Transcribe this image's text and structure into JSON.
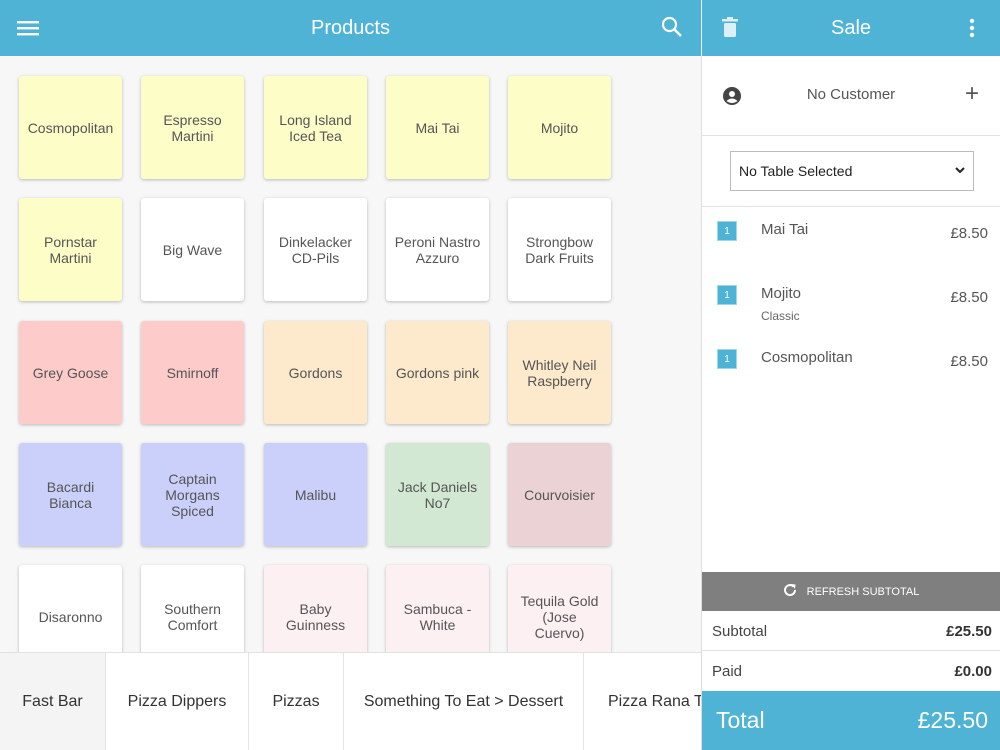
{
  "header": {
    "title": "Products",
    "menu_icon": "hamburger-icon",
    "search_icon": "search-icon"
  },
  "sale_header": {
    "title": "Sale",
    "delete_icon": "trash-icon",
    "more_icon": "more-vert-icon"
  },
  "colors": {
    "accent": "#4fb3d6",
    "yellow": "#fdfdc8",
    "white": "#ffffff",
    "red": "#fecbcb",
    "peach": "#fde9cb",
    "blue": "#cbd0fb",
    "green": "#d2e8d2",
    "mauve": "#ebd2d4",
    "pink": "#fdf0f2"
  },
  "products": [
    {
      "label": "Cosmopolitan",
      "color": "#fdfdc8"
    },
    {
      "label": "Espresso\nMartini",
      "color": "#fdfdc8"
    },
    {
      "label": "Long Island\nIced Tea",
      "color": "#fdfdc8"
    },
    {
      "label": "Mai Tai",
      "color": "#fdfdc8"
    },
    {
      "label": "Mojito",
      "color": "#fdfdc8"
    },
    {
      "label": "Pornstar\nMartini",
      "color": "#fdfdc8"
    },
    {
      "label": "Big Wave",
      "color": "#ffffff"
    },
    {
      "label": "Dinkelacker\nCD-Pils",
      "color": "#ffffff"
    },
    {
      "label": "Peroni Nastro\nAzzuro",
      "color": "#ffffff"
    },
    {
      "label": "Strongbow\nDark Fruits",
      "color": "#ffffff"
    },
    {
      "label": "Grey Goose",
      "color": "#fecbcb"
    },
    {
      "label": "Smirnoff",
      "color": "#fecbcb"
    },
    {
      "label": "Gordons",
      "color": "#fde9cb"
    },
    {
      "label": "Gordons pink",
      "color": "#fde9cb"
    },
    {
      "label": "Whitley Neil\nRaspberry",
      "color": "#fde9cb"
    },
    {
      "label": "Bacardi\nBianca",
      "color": "#cbd0fb"
    },
    {
      "label": "Captain\nMorgans\nSpiced",
      "color": "#cbd0fb"
    },
    {
      "label": "Malibu",
      "color": "#cbd0fb"
    },
    {
      "label": "Jack Daniels\nNo7",
      "color": "#d2e8d2"
    },
    {
      "label": "Courvoisier",
      "color": "#ebd2d4"
    },
    {
      "label": "Disaronno",
      "color": "#ffffff"
    },
    {
      "label": "Southern\nComfort",
      "color": "#ffffff"
    },
    {
      "label": "Baby\nGuinness",
      "color": "#fdf0f2"
    },
    {
      "label": "Sambuca -\nWhite",
      "color": "#fdf0f2"
    },
    {
      "label": "Tequila Gold\n(Jose\nCuervo)",
      "color": "#fdf0f2"
    }
  ],
  "categories": [
    {
      "label": "Fast Bar",
      "active": true
    },
    {
      "label": "Pizza Dippers"
    },
    {
      "label": "Pizzas"
    },
    {
      "label": "Something To Eat > Dessert"
    },
    {
      "label": "Pizza Rana Tavola"
    }
  ],
  "customer": {
    "label": "No Customer",
    "icon": "account-circle-icon",
    "add_icon": "plus-icon"
  },
  "table_select": {
    "value": "No Table Selected"
  },
  "items": [
    {
      "qty": "1",
      "name": "Mai Tai",
      "modifier": "",
      "price": "£8.50"
    },
    {
      "qty": "1",
      "name": "Mojito",
      "modifier": "Classic",
      "price": "£8.50"
    },
    {
      "qty": "1",
      "name": "Cosmopolitan",
      "modifier": "",
      "price": "£8.50"
    }
  ],
  "refresh": {
    "label": "REFRESH SUBTOTAL"
  },
  "totals": {
    "subtotal_label": "Subtotal",
    "subtotal": "£25.50",
    "paid_label": "Paid",
    "paid": "£0.00",
    "total_label": "Total",
    "total": "£25.50"
  }
}
